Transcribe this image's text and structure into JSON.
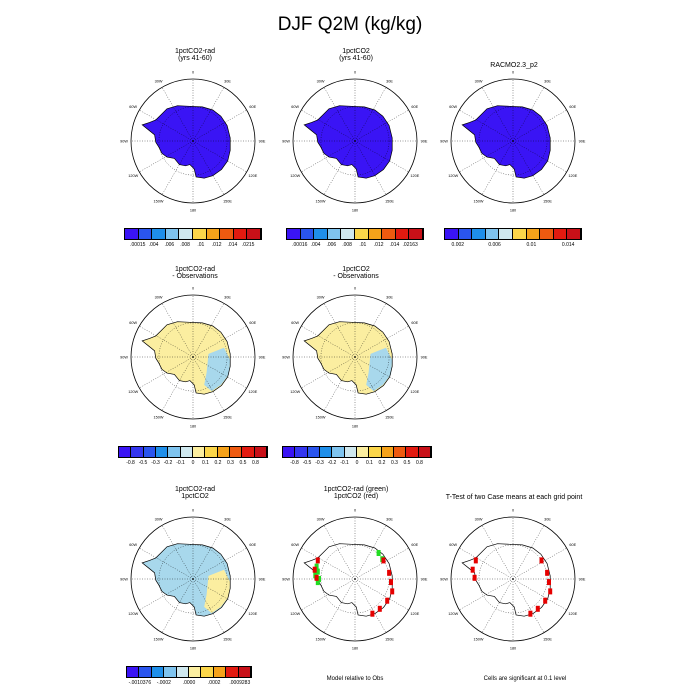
{
  "title": "DJF Q2M (kg/kg)",
  "colors": {
    "deep_blue": "#3a14f5",
    "blue_level_2": "#2a55ee",
    "light_blue": "#a8d8ec",
    "pale_yellow": "#fbeea0",
    "sig_green": "#22dd22",
    "sig_red": "#e60000"
  },
  "panels": [
    {
      "title": [
        "1pctCO2-rad",
        "(yrs 41-60)"
      ]
    },
    {
      "title": [
        "1pctCO2",
        "(yrs 41-60)"
      ]
    },
    {
      "title": [
        "RACMO2.3_p2"
      ]
    },
    {
      "title": [
        "1pctCO2-rad",
        "- Observations"
      ]
    },
    {
      "title": [
        "1pctCO2",
        "- Observations"
      ]
    },
    {
      "title": [
        "1pctCO2-rad",
        "1pctCO2"
      ]
    },
    {
      "title": [
        "1pctCO2-rad (green)",
        "1pctCO2 (red)"
      ]
    },
    {
      "title": [
        "T-Test of two Case means at each grid point"
      ]
    }
  ],
  "map_labels": {
    "lon": [
      "0",
      "30E",
      "60E",
      "90E",
      "120E",
      "150E",
      "180",
      "150W",
      "120W",
      "90W",
      "60W",
      "30W"
    ]
  },
  "colorbars": [
    {
      "labels": [
        ".00015",
        ".004",
        ".006",
        ".008",
        ".01",
        ".012",
        ".014",
        ".0215"
      ],
      "colors": [
        "#3a14f5",
        "#2a55ee",
        "#1f8fea",
        "#7fc4ef",
        "#cfe8ef",
        "#fbd64a",
        "#f5a21a",
        "#ee5a10",
        "#e21a10",
        "#c81018"
      ]
    },
    {
      "labels": [
        ".00016",
        ".004",
        ".006",
        ".008",
        ".01",
        ".012",
        ".014",
        ".02163"
      ],
      "colors": [
        "#3a14f5",
        "#2a55ee",
        "#1f8fea",
        "#7fc4ef",
        "#cfe8ef",
        "#fbd64a",
        "#f5a21a",
        "#ee5a10",
        "#e21a10",
        "#c81018"
      ]
    },
    {
      "labels": [
        "0.002",
        "0.006",
        "0.01",
        "0.014"
      ],
      "colors": [
        "#3a14f5",
        "#2a55ee",
        "#1f8fea",
        "#7fc4ef",
        "#cfe8ef",
        "#fbd64a",
        "#f5a21a",
        "#ee5a10",
        "#e21a10",
        "#c81018"
      ]
    },
    {
      "labels": [
        "-0.8",
        "-0.5",
        "-0.3",
        "-0.2",
        "-0.1",
        "0",
        "0.1",
        "0.2",
        "0.3",
        "0.5",
        "0.8"
      ],
      "colors": [
        "#3a14f5",
        "#3436f0",
        "#2a55ee",
        "#1f8fea",
        "#7fc4ef",
        "#cfe8ef",
        "#fbeea0",
        "#fbd64a",
        "#f5a21a",
        "#ee5a10",
        "#e21a10",
        "#c81018"
      ]
    },
    {
      "labels": [
        "-0.8",
        "-0.5",
        "-0.3",
        "-0.2",
        "-0.1",
        "0",
        "0.1",
        "0.2",
        "0.3",
        "0.5",
        "0.8"
      ],
      "colors": [
        "#3a14f5",
        "#3436f0",
        "#2a55ee",
        "#1f8fea",
        "#7fc4ef",
        "#cfe8ef",
        "#fbeea0",
        "#fbd64a",
        "#f5a21a",
        "#ee5a10",
        "#e21a10",
        "#c81018"
      ]
    },
    {
      "labels": [
        "-.0010376",
        "-.0002",
        ".0000",
        ".0002",
        ".0009283"
      ],
      "colors": [
        "#3a14f5",
        "#2a55ee",
        "#1f8fea",
        "#7fc4ef",
        "#cfe8ef",
        "#fbeea0",
        "#fbd64a",
        "#f5a21a",
        "#e21a10",
        "#c81018"
      ]
    }
  ],
  "notes": {
    "model_relative": "Model relative to Obs",
    "significance": "Cells are significant at 0.1 level"
  },
  "chart_data": [
    {
      "type": "heatmap",
      "title": "1pctCO2-rad (yrs 41-60)",
      "fill": "deep_blue",
      "colorbar_range": [
        0.00015,
        0.0215
      ]
    },
    {
      "type": "heatmap",
      "title": "1pctCO2 (yrs 41-60)",
      "fill": "deep_blue",
      "colorbar_range": [
        0.00016,
        0.02163
      ]
    },
    {
      "type": "heatmap",
      "title": "RACMO2.3_p2",
      "fill": "deep_blue"
    },
    {
      "type": "heatmap",
      "title": "1pctCO2-rad - Observations",
      "fill": "pale_yellow",
      "secondary_fill": "light_blue",
      "colorbar_range": [
        -0.8,
        0.8
      ]
    },
    {
      "type": "heatmap",
      "title": "1pctCO2 - Observations",
      "fill": "pale_yellow",
      "secondary_fill": "light_blue",
      "colorbar_range": [
        -0.8,
        0.8
      ]
    },
    {
      "type": "heatmap",
      "title": "1pctCO2-rad 1pctCO2",
      "fill": "light_blue",
      "secondary_fill": "pale_yellow",
      "colorbar_range": [
        -0.0010376,
        0.0009283
      ]
    },
    {
      "type": "heatmap",
      "title": "1pctCO2-rad (green) 1pctCO2 (red)",
      "fill": "none",
      "marks": [
        "sig_green",
        "sig_red"
      ]
    },
    {
      "type": "heatmap",
      "title": "T-Test of two Case means at each grid point",
      "fill": "none",
      "marks": [
        "sig_red"
      ]
    }
  ]
}
